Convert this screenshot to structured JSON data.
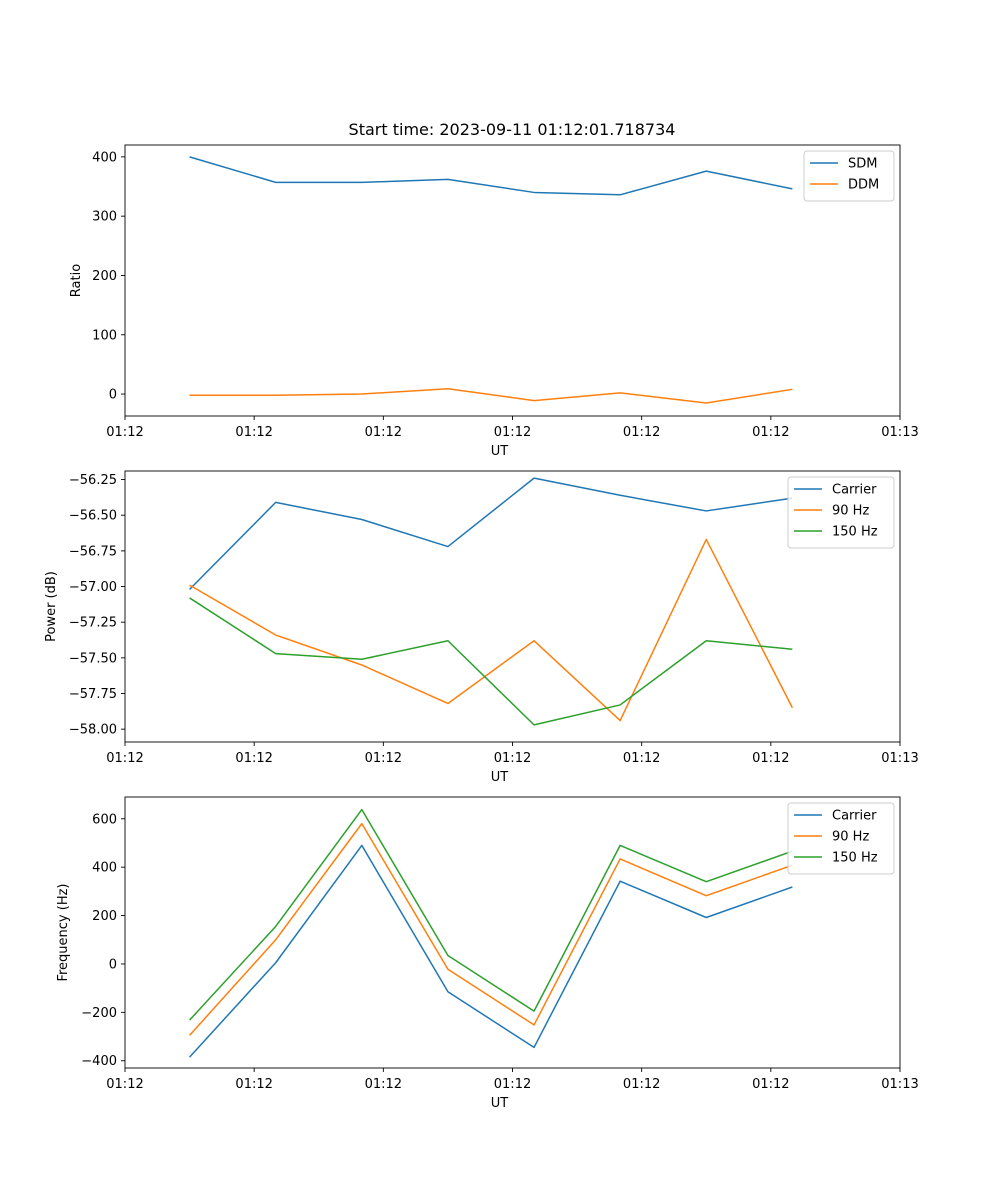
{
  "figure": {
    "title": "Start time: 2023-09-11 01:12:01.718734"
  },
  "colors": {
    "c0": "#1f77b4",
    "c1": "#ff7f0e",
    "c2": "#2ca02c"
  },
  "chart_data": [
    {
      "type": "line",
      "title": "Start time: 2023-09-11 01:12:01.718734",
      "xlabel": "UT",
      "ylabel": "Ratio",
      "xlim": [
        -0.75,
        8.25
      ],
      "ylim": [
        -37,
        420
      ],
      "x": [
        0,
        1,
        2,
        3,
        4,
        5,
        6,
        7
      ],
      "x_ticks": [
        {
          "v": -0.75,
          "label": "01:12"
        },
        {
          "v": 0.75,
          "label": "01:12"
        },
        {
          "v": 2.25,
          "label": "01:12"
        },
        {
          "v": 3.75,
          "label": "01:12"
        },
        {
          "v": 5.25,
          "label": "01:12"
        },
        {
          "v": 6.75,
          "label": "01:12"
        },
        {
          "v": 8.25,
          "label": "01:13"
        }
      ],
      "y_ticks": [
        0,
        100,
        200,
        300,
        400
      ],
      "y_tick_labels": [
        "0",
        "100",
        "200",
        "300",
        "400"
      ],
      "legend_position": "top-right",
      "series": [
        {
          "name": "SDM",
          "color": "#1f77b4",
          "values": [
            400,
            357,
            357,
            362,
            340,
            336,
            376,
            346
          ]
        },
        {
          "name": "DDM",
          "color": "#ff7f0e",
          "values": [
            -2,
            -2,
            0,
            9,
            -11,
            2,
            -15,
            8
          ]
        }
      ]
    },
    {
      "type": "line",
      "xlabel": "UT",
      "ylabel": "Power (dB)",
      "xlim": [
        -0.75,
        8.25
      ],
      "ylim": [
        -58.09,
        -56.19
      ],
      "x": [
        0,
        1,
        2,
        3,
        4,
        5,
        6,
        7
      ],
      "x_ticks": [
        {
          "v": -0.75,
          "label": "01:12"
        },
        {
          "v": 0.75,
          "label": "01:12"
        },
        {
          "v": 2.25,
          "label": "01:12"
        },
        {
          "v": 3.75,
          "label": "01:12"
        },
        {
          "v": 5.25,
          "label": "01:12"
        },
        {
          "v": 6.75,
          "label": "01:12"
        },
        {
          "v": 8.25,
          "label": "01:13"
        }
      ],
      "y_ticks": [
        -58.0,
        -57.75,
        -57.5,
        -57.25,
        -57.0,
        -56.75,
        -56.5,
        -56.25
      ],
      "y_tick_labels": [
        "−58.00",
        "−57.75",
        "−57.50",
        "−57.25",
        "−57.00",
        "−56.75",
        "−56.50",
        "−56.25"
      ],
      "legend_position": "top-right",
      "series": [
        {
          "name": "Carrier",
          "color": "#1f77b4",
          "values": [
            -57.02,
            -56.41,
            -56.53,
            -56.72,
            -56.24,
            -56.36,
            -56.47,
            -56.38
          ]
        },
        {
          "name": "90 Hz",
          "color": "#ff7f0e",
          "values": [
            -56.99,
            -57.34,
            -57.55,
            -57.82,
            -57.38,
            -57.94,
            -56.67,
            -57.85
          ]
        },
        {
          "name": "150 Hz",
          "color": "#2ca02c",
          "values": [
            -57.08,
            -57.47,
            -57.51,
            -57.38,
            -57.97,
            -57.83,
            -57.38,
            -57.44
          ]
        }
      ]
    },
    {
      "type": "line",
      "xlabel": "UT",
      "ylabel": "Frequency (Hz)",
      "xlim": [
        -0.75,
        8.25
      ],
      "ylim": [
        -430,
        690
      ],
      "x": [
        0,
        1,
        2,
        3,
        4,
        5,
        6,
        7
      ],
      "x_ticks": [
        {
          "v": -0.75,
          "label": "01:12"
        },
        {
          "v": 0.75,
          "label": "01:12"
        },
        {
          "v": 2.25,
          "label": "01:12"
        },
        {
          "v": 3.75,
          "label": "01:12"
        },
        {
          "v": 5.25,
          "label": "01:12"
        },
        {
          "v": 6.75,
          "label": "01:12"
        },
        {
          "v": 8.25,
          "label": "01:13"
        }
      ],
      "y_ticks": [
        -400,
        -200,
        0,
        200,
        400,
        600
      ],
      "y_tick_labels": [
        "−400",
        "−200",
        "0",
        "200",
        "400",
        "600"
      ],
      "legend_position": "top-right",
      "series": [
        {
          "name": "Carrier",
          "color": "#1f77b4",
          "values": [
            -385,
            5,
            490,
            -115,
            -345,
            342,
            192,
            318
          ]
        },
        {
          "name": "90 Hz",
          "color": "#ff7f0e",
          "values": [
            -295,
            100,
            580,
            -22,
            -252,
            434,
            282,
            408
          ]
        },
        {
          "name": "150 Hz",
          "color": "#2ca02c",
          "values": [
            -232,
            155,
            638,
            35,
            -195,
            490,
            340,
            466
          ]
        }
      ]
    }
  ]
}
